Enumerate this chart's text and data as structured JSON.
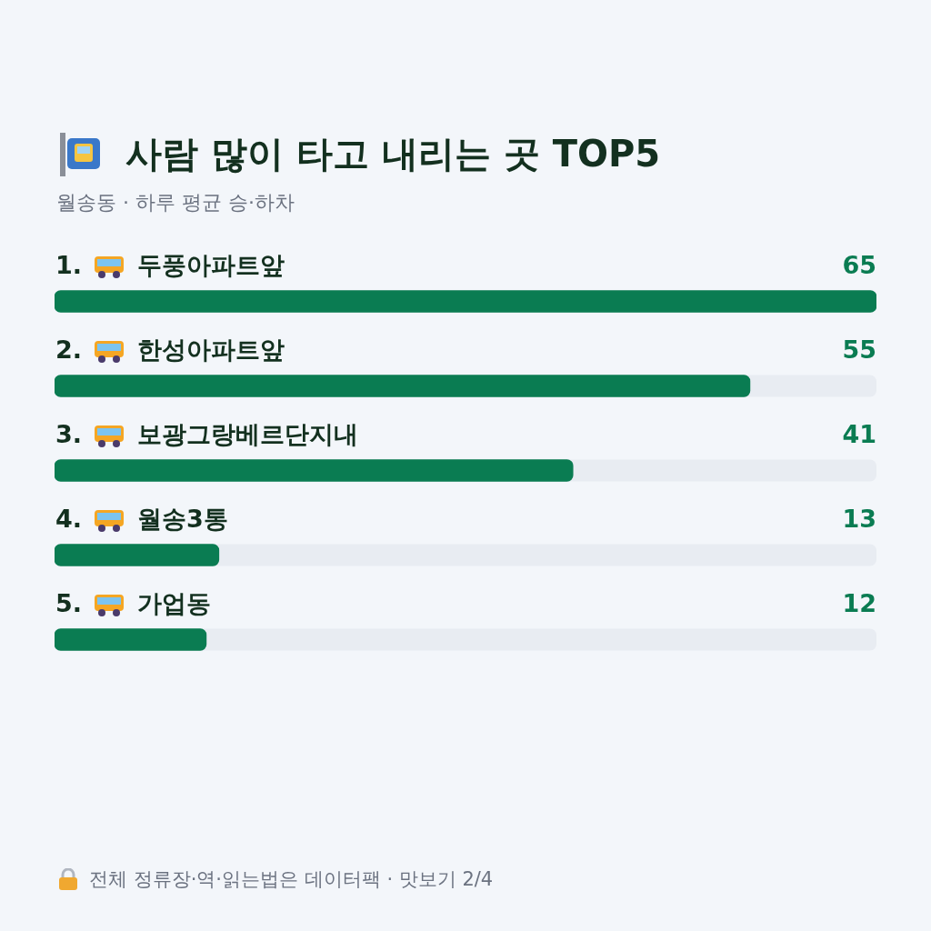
{
  "chart_data": {
    "type": "bar",
    "orientation": "horizontal",
    "title": "사람 많이 타고 내리는 곳 TOP5",
    "subtitle": "월송동 · 하루 평균 승·하차",
    "categories": [
      "1. 두풍아파트앞",
      "2. 한성아파트앞",
      "3. 보광그랑베르단지내",
      "4. 월송3통",
      "5. 가업동"
    ],
    "values": [
      65,
      55,
      41,
      13,
      12
    ],
    "color": "#0a7c52",
    "xlim": [
      0,
      65
    ],
    "tick_labels": false,
    "legend": false,
    "data_labels": true,
    "annotations": [
      "전체 정류장·역·읽는법은 데이터팩 · 맛보기 2/4"
    ]
  }
}
